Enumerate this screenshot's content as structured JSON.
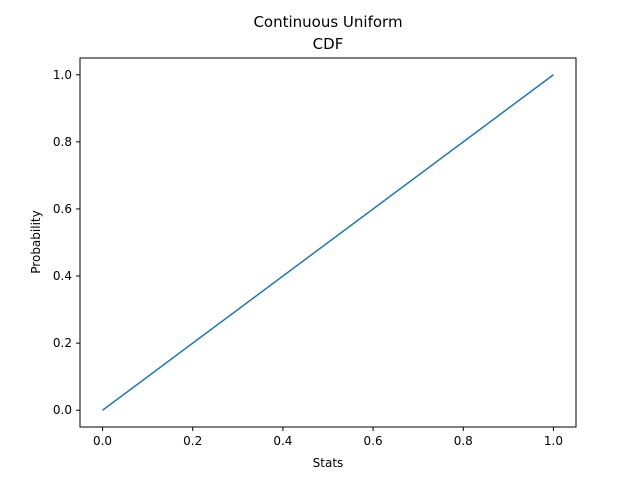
{
  "chart_data": {
    "type": "line",
    "title": "Continuous Uniform",
    "subtitle": "CDF",
    "xlabel": "Stats",
    "ylabel": "Probability",
    "xlim": [
      -0.05,
      1.05
    ],
    "ylim": [
      -0.05,
      1.05
    ],
    "xticks": [
      "0.0",
      "0.2",
      "0.4",
      "0.6",
      "0.8",
      "1.0"
    ],
    "yticks": [
      "0.0",
      "0.2",
      "0.4",
      "0.6",
      "0.8",
      "1.0"
    ],
    "grid": false,
    "series": [
      {
        "color": "#1f77b4",
        "x": [
          0.0,
          1.0
        ],
        "y": [
          0.0,
          1.0
        ]
      }
    ]
  }
}
